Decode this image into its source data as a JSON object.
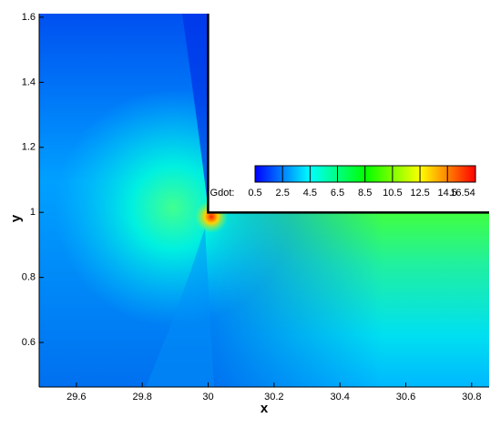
{
  "chart_data": {
    "type": "contour",
    "xlabel": "x",
    "ylabel": "y",
    "xlim": [
      29.487,
      30.853
    ],
    "xticks": [
      29.6,
      29.8,
      30,
      30.2,
      30.4,
      30.6,
      30.8
    ],
    "ylim": [
      0.463,
      1.611
    ],
    "yticks": [
      0.6,
      0.8,
      1,
      1.2,
      1.4,
      1.6
    ],
    "colorbar": {
      "label": "Gdot:",
      "lim": [
        0.5,
        16.54
      ],
      "ticks": [
        0.5,
        2.5,
        4.5,
        6.5,
        8.5,
        10.5,
        12.5,
        14.5,
        16.54
      ],
      "colors": [
        "#0000ff",
        "#0080ff",
        "#00ffff",
        "#00ff80",
        "#00ff00",
        "#80ff00",
        "#ffff00",
        "#ff8000",
        "#ff0000"
      ]
    }
  }
}
